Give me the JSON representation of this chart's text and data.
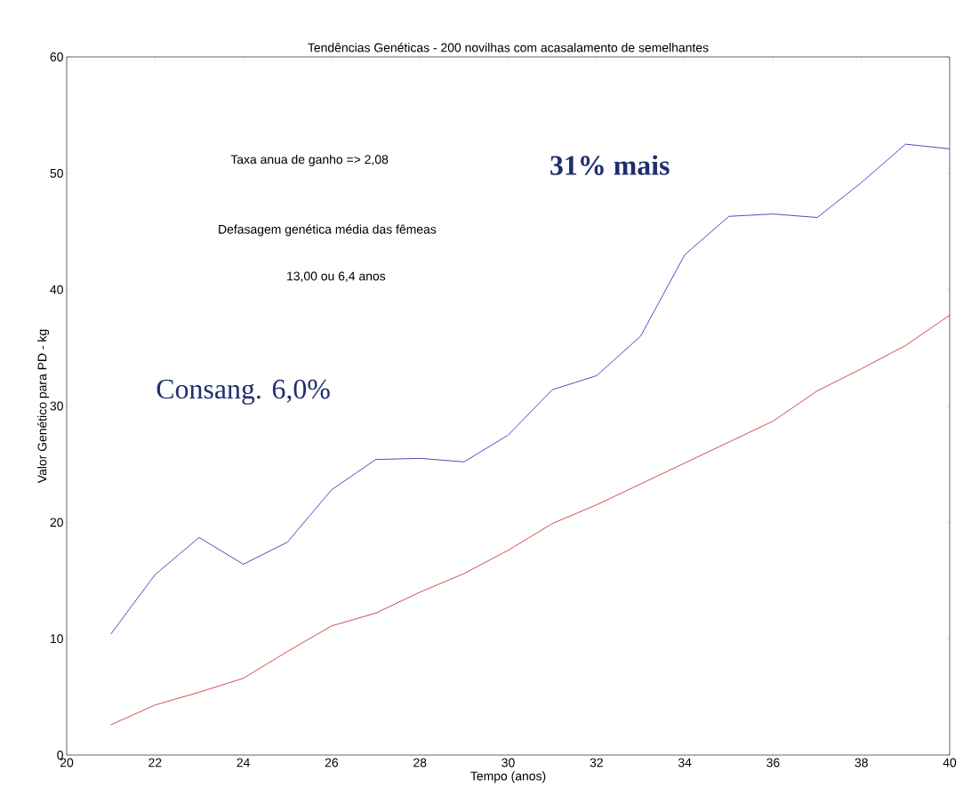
{
  "chart_data": {
    "type": "line",
    "title": "Tendências Genéticas - 200 novilhas com acasalamento de semelhantes",
    "xlabel": "Tempo (anos)",
    "ylabel": "Valor Genético para PD - kg",
    "x": [
      21,
      22,
      23,
      24,
      25,
      26,
      27,
      28,
      29,
      30,
      31,
      32,
      33,
      34,
      35,
      36,
      37,
      38,
      39,
      40
    ],
    "series": [
      {
        "color": "#0000a8",
        "values": [
          10.4,
          15.5,
          18.7,
          16.4,
          18.3,
          22.8,
          25.4,
          25.5,
          25.2,
          27.5,
          31.4,
          32.6,
          36.0,
          43.0,
          46.3,
          46.5,
          46.2,
          49.2,
          52.5,
          52.1
        ]
      },
      {
        "color": "#c00000",
        "values": [
          2.6,
          4.3,
          5.4,
          6.6,
          8.9,
          11.1,
          12.2,
          14.0,
          15.6,
          17.6,
          19.9,
          21.5,
          23.3,
          25.1,
          26.9,
          28.7,
          31.3,
          33.2,
          35.2,
          37.8
        ]
      }
    ],
    "annotations": [
      "Taxa anua de ganho => 2,08",
      "Defasagem genética média das fêmeas",
      "13,00 ou 6,4 anos",
      "31% mais",
      "Consang. 6,0%"
    ],
    "xlim": [
      20,
      40
    ],
    "ylim": [
      0,
      60
    ],
    "xticks": [
      20,
      22,
      24,
      26,
      28,
      30,
      32,
      34,
      36,
      38,
      40
    ],
    "yticks": [
      0,
      10,
      20,
      30,
      40,
      50,
      60
    ],
    "grid": false,
    "marker": "none",
    "line_style": "solid"
  }
}
